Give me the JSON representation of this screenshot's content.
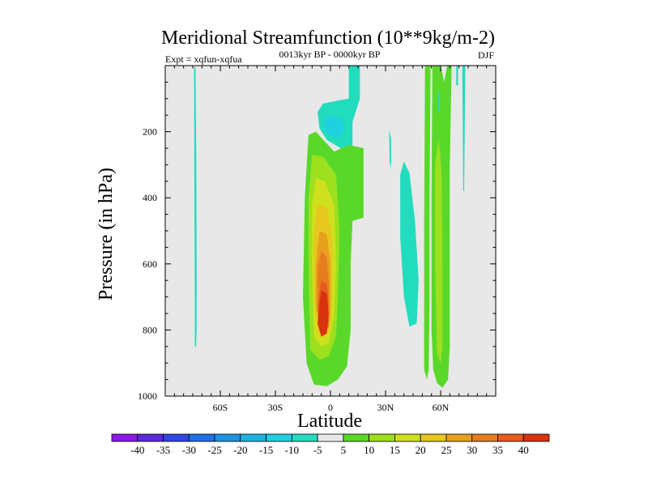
{
  "chart_data": {
    "type": "contour",
    "title": "Meridional Streamfunction (10**9kg/m-2)",
    "subtitle": "0013kyr BP - 0000kyr BP",
    "left_annotation": "Expt = xqfun-xqfua",
    "right_annotation": "DJF",
    "xlabel": "Latitude",
    "ylabel": "Pressure (in hPa)",
    "xlim": [
      -90,
      90
    ],
    "ylim": [
      1000,
      0
    ],
    "x_ticks": [
      -60,
      -30,
      0,
      30,
      60
    ],
    "x_tick_labels": [
      "60S",
      "30S",
      "0",
      "30N",
      "60N"
    ],
    "y_ticks": [
      200,
      400,
      600,
      800,
      1000
    ],
    "y_tick_labels": [
      "200",
      "400",
      "600",
      "800",
      "1000"
    ],
    "background_color": "#e8e8e8",
    "colorbar": {
      "levels": [
        -40,
        -35,
        -30,
        -25,
        -20,
        -15,
        -10,
        -5,
        5,
        10,
        15,
        20,
        25,
        30,
        35,
        40
      ],
      "level_labels": [
        "-40",
        "-35",
        "-30",
        "-25",
        "-20",
        "-15",
        "-10",
        "-5",
        "5",
        "10",
        "15",
        "20",
        "25",
        "30",
        "35",
        "40"
      ],
      "colors": [
        "#8a19e6",
        "#5a2ad8",
        "#3048e0",
        "#1f6fe6",
        "#1e93e2",
        "#1fb2e0",
        "#20cfe0",
        "#22dcbe",
        "#e8e8e8",
        "#5ad82a",
        "#9ce01e",
        "#cfe01e",
        "#e6c81e",
        "#e6a01e",
        "#e67c1e",
        "#e65a1e",
        "#d8320e"
      ]
    },
    "contour_regions": [
      {
        "name": "neg-thin-75S",
        "fill": 7,
        "pts": [
          [
            -74.3,
            5
          ],
          [
            -73.5,
            5
          ],
          [
            -73.1,
            300
          ],
          [
            -72.9,
            600
          ],
          [
            -72.9,
            790
          ],
          [
            -73.2,
            850
          ],
          [
            -73.9,
            850
          ],
          [
            -73.9,
            700
          ],
          [
            -74.1,
            400
          ]
        ]
      },
      {
        "name": "neg-upper-0-10N",
        "fill": 7,
        "pts": [
          [
            -7,
            140
          ],
          [
            -4,
            115
          ],
          [
            5,
            105
          ],
          [
            10,
            100
          ],
          [
            10,
            0
          ],
          [
            16,
            0
          ],
          [
            16,
            100
          ],
          [
            12,
            170
          ],
          [
            12,
            245
          ],
          [
            7,
            255
          ],
          [
            -2,
            225
          ],
          [
            -6,
            190
          ]
        ]
      },
      {
        "name": "neg-core-0N",
        "fill": 6,
        "pts": [
          [
            -4,
            170
          ],
          [
            0,
            150
          ],
          [
            6,
            160
          ],
          [
            8,
            190
          ],
          [
            4,
            220
          ],
          [
            -2,
            205
          ]
        ]
      },
      {
        "name": "neg-sliver-33N",
        "fill": 7,
        "pts": [
          [
            32,
            195
          ],
          [
            33,
            220
          ],
          [
            33,
            310
          ],
          [
            32.2,
            290
          ]
        ]
      },
      {
        "name": "neg-38N",
        "fill": 7,
        "pts": [
          [
            38,
            330
          ],
          [
            40,
            290
          ],
          [
            43,
            325
          ],
          [
            46,
            470
          ],
          [
            48,
            650
          ],
          [
            47,
            780
          ],
          [
            43,
            790
          ],
          [
            40,
            700
          ],
          [
            38,
            520
          ]
        ]
      },
      {
        "name": "pos-main-lvl1",
        "fill": 9,
        "pts": [
          [
            -12,
            210
          ],
          [
            -8,
            200
          ],
          [
            2,
            260
          ],
          [
            10,
            240
          ],
          [
            18,
            250
          ],
          [
            18,
            460
          ],
          [
            12,
            470
          ],
          [
            11,
            600
          ],
          [
            11,
            800
          ],
          [
            9,
            910
          ],
          [
            4,
            950
          ],
          [
            -2,
            970
          ],
          [
            -9,
            965
          ],
          [
            -13,
            900
          ],
          [
            -15,
            700
          ],
          [
            -14,
            400
          ]
        ]
      },
      {
        "name": "pos-main-lvl2",
        "fill": 10,
        "pts": [
          [
            -10,
            270
          ],
          [
            -4,
            275
          ],
          [
            3,
            330
          ],
          [
            5,
            500
          ],
          [
            4,
            700
          ],
          [
            3,
            820
          ],
          [
            -1,
            880
          ],
          [
            -6,
            890
          ],
          [
            -11,
            860
          ],
          [
            -12,
            600
          ],
          [
            -12,
            400
          ]
        ]
      },
      {
        "name": "pos-main-lvl3",
        "fill": 11,
        "pts": [
          [
            -8,
            340
          ],
          [
            -3,
            350
          ],
          [
            2,
            420
          ],
          [
            3,
            600
          ],
          [
            2,
            760
          ],
          [
            -1,
            840
          ],
          [
            -5,
            850
          ],
          [
            -9,
            820
          ],
          [
            -10,
            600
          ],
          [
            -10,
            420
          ]
        ]
      },
      {
        "name": "pos-main-lvl4",
        "fill": 12,
        "pts": [
          [
            -7,
            420
          ],
          [
            -2,
            430
          ],
          [
            1,
            520
          ],
          [
            1,
            680
          ],
          [
            0,
            800
          ],
          [
            -3,
            820
          ],
          [
            -7,
            810
          ],
          [
            -9,
            700
          ],
          [
            -9,
            500
          ]
        ]
      },
      {
        "name": "pos-main-lvl5",
        "fill": 13,
        "pts": [
          [
            -6,
            500
          ],
          [
            -2,
            510
          ],
          [
            0,
            600
          ],
          [
            0,
            760
          ],
          [
            -2,
            800
          ],
          [
            -5,
            800
          ],
          [
            -8,
            740
          ],
          [
            -8,
            600
          ]
        ]
      },
      {
        "name": "pos-main-lvl6",
        "fill": 14,
        "pts": [
          [
            -5,
            560
          ],
          [
            -2,
            580
          ],
          [
            -1,
            660
          ],
          [
            -1,
            760
          ],
          [
            -3,
            800
          ],
          [
            -6,
            790
          ],
          [
            -7,
            700
          ],
          [
            -7,
            610
          ]
        ]
      },
      {
        "name": "pos-main-lvl7",
        "fill": 15,
        "pts": [
          [
            -5,
            650
          ],
          [
            -2,
            660
          ],
          [
            -1,
            720
          ],
          [
            -1,
            790
          ],
          [
            -4,
            810
          ],
          [
            -6,
            800
          ],
          [
            -7,
            730
          ]
        ]
      },
      {
        "name": "pos-main-core",
        "fill": 16,
        "pts": [
          [
            -5,
            680
          ],
          [
            -2,
            690
          ],
          [
            -1,
            750
          ],
          [
            -2,
            810
          ],
          [
            -5,
            820
          ],
          [
            -7,
            780
          ],
          [
            -6,
            720
          ]
        ]
      },
      {
        "name": "pos-52N",
        "fill": 9,
        "pts": [
          [
            51.5,
            0
          ],
          [
            54.5,
            0
          ],
          [
            54,
            400
          ],
          [
            54,
            700
          ],
          [
            53.5,
            920
          ],
          [
            52.5,
            950
          ],
          [
            51,
            920
          ],
          [
            51,
            500
          ]
        ]
      },
      {
        "name": "pos-58N-outer",
        "fill": 9,
        "pts": [
          [
            55.5,
            0
          ],
          [
            60,
            0
          ],
          [
            62,
            50
          ],
          [
            63.5,
            0
          ],
          [
            66,
            0
          ],
          [
            65,
            300
          ],
          [
            65,
            600
          ],
          [
            65,
            850
          ],
          [
            64,
            950
          ],
          [
            61,
            975
          ],
          [
            58,
            960
          ],
          [
            56,
            920
          ],
          [
            55,
            800
          ],
          [
            55,
            400
          ]
        ]
      },
      {
        "name": "pos-58N-inner",
        "fill": 10,
        "pts": [
          [
            57,
            300
          ],
          [
            59,
            220
          ],
          [
            60.5,
            320
          ],
          [
            61,
            600
          ],
          [
            61,
            850
          ],
          [
            60,
            900
          ],
          [
            58,
            870
          ],
          [
            57,
            600
          ]
        ]
      },
      {
        "name": "neg-59N-core",
        "fill": 7,
        "pts": [
          [
            58.5,
            80
          ],
          [
            59.5,
            80
          ],
          [
            59.5,
            140
          ],
          [
            58.5,
            140
          ]
        ]
      },
      {
        "name": "neg-72N-sliver",
        "fill": 7,
        "pts": [
          [
            71.8,
            0
          ],
          [
            73.4,
            0
          ],
          [
            73.2,
            150
          ],
          [
            72.8,
            380
          ],
          [
            72.3,
            380
          ],
          [
            72.1,
            200
          ]
        ]
      },
      {
        "name": "neg-69N-sliver",
        "fill": 7,
        "pts": [
          [
            68.5,
            0
          ],
          [
            69.5,
            0
          ],
          [
            69.5,
            60
          ],
          [
            68.5,
            60
          ]
        ]
      }
    ]
  }
}
